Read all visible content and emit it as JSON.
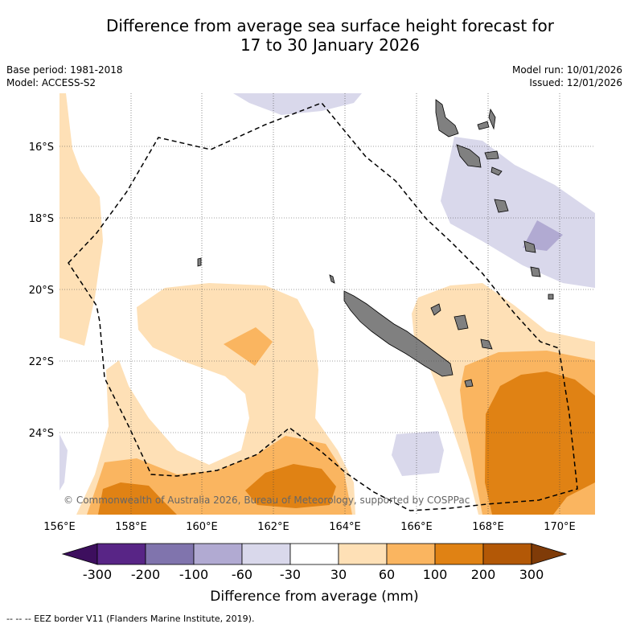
{
  "title": {
    "line1": "Difference from average sea surface height forecast for",
    "line2": "17 to 30 January 2026"
  },
  "meta": {
    "base_period": "Base period: 1981-2018",
    "model": "Model: ACCESS-S2",
    "model_run": "Model run: 10/01/2026",
    "issued": "Issued: 12/01/2026"
  },
  "map": {
    "lon_labels": [
      "156°E",
      "158°E",
      "160°E",
      "162°E",
      "164°E",
      "166°E",
      "168°E",
      "170°E"
    ],
    "lat_labels": [
      "16°S",
      "18°S",
      "20°S",
      "22°S",
      "24°S"
    ],
    "copyright": "© Commonwealth of Australia 2026, Bureau of Meteorology, supported by COSPPac"
  },
  "colorbar": {
    "colors": [
      "#3d0f5e",
      "#582586",
      "#8074ad",
      "#b1aad2",
      "#d9d8eb",
      "#ffffff",
      "#fee0b6",
      "#fab560",
      "#e08214",
      "#b35806",
      "#7f3b08"
    ],
    "tick_labels": [
      "-300",
      "-200",
      "-100",
      "-60",
      "-30",
      "30",
      "60",
      "100",
      "200",
      "300"
    ],
    "label": "Difference from average (mm)"
  },
  "footer": {
    "legend": "--  --  -- EEZ border V11 (Flanders Marine Institute, 2019)."
  }
}
